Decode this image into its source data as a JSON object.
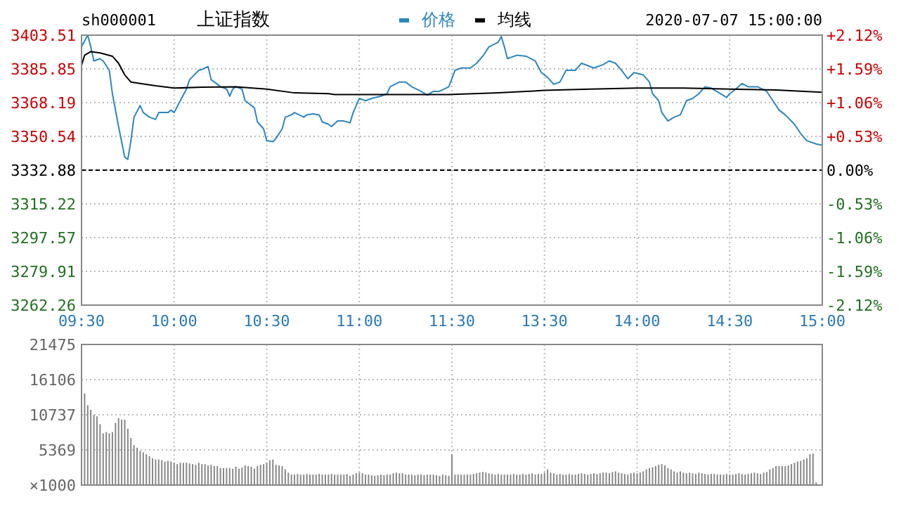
{
  "chart_data": [
    {
      "type": "line",
      "title": "上证指数",
      "subtitle": "sh000001",
      "annotations": [
        "2020-07-07 15:00:00"
      ],
      "categories": [
        "09:30",
        null,
        null,
        null,
        null,
        null,
        null,
        null,
        null,
        null,
        null,
        null,
        null,
        null,
        null,
        null,
        null,
        null,
        null,
        null,
        null,
        null,
        null,
        null,
        null,
        null,
        null,
        null,
        null,
        null,
        "10:00",
        null,
        null,
        null,
        null,
        null,
        null,
        null,
        null,
        null,
        null,
        null,
        null,
        null,
        null,
        null,
        null,
        null,
        null,
        null,
        null,
        null,
        null,
        null,
        null,
        null,
        null,
        null,
        null,
        null,
        "10:30",
        null,
        null,
        null,
        null,
        null,
        null,
        null,
        null,
        null,
        null,
        null,
        null,
        null,
        null,
        null,
        null,
        null,
        null,
        null,
        null,
        null,
        null,
        null,
        null,
        null,
        null,
        null,
        null,
        null,
        "11:00",
        null,
        null,
        null,
        null,
        null,
        null,
        null,
        null,
        null,
        null,
        null,
        null,
        null,
        null,
        null,
        null,
        null,
        null,
        null,
        null,
        null,
        null,
        null,
        null,
        null,
        null,
        null,
        null,
        null,
        "11:30",
        null,
        null,
        null,
        null,
        null,
        null,
        null,
        null,
        null,
        null,
        null,
        null,
        null,
        null,
        null,
        null,
        null,
        null,
        null,
        null,
        null,
        null,
        null,
        null,
        null,
        null,
        null,
        null,
        null,
        "13:30",
        null,
        null,
        null,
        null,
        null,
        null,
        null,
        null,
        null,
        null,
        null,
        null,
        null,
        null,
        null,
        null,
        null,
        null,
        null,
        null,
        null,
        null,
        null,
        null,
        null,
        null,
        null,
        null,
        null,
        "14:00",
        null,
        null,
        null,
        null,
        null,
        null,
        null,
        null,
        null,
        null,
        null,
        null,
        null,
        null,
        null,
        null,
        null,
        null,
        null,
        null,
        null,
        null,
        null,
        null,
        null,
        null,
        null,
        null,
        null,
        "14:30",
        null,
        null,
        null,
        null,
        null,
        null,
        null,
        null,
        null,
        null,
        null,
        null,
        null,
        null,
        null,
        null,
        null,
        null,
        null,
        null,
        null,
        null,
        null,
        null,
        null,
        null,
        null,
        null,
        null,
        "15:00"
      ],
      "ylim": [
        3262.26,
        3403.51
      ],
      "yticks": [
        3262.26,
        3279.91,
        3297.57,
        3315.22,
        3332.88,
        3350.54,
        3368.19,
        3385.85,
        3403.51
      ],
      "y2lim": [
        -2.12,
        2.12
      ],
      "y2ticks": [
        {
          "value": -2.12,
          "label": "-2.12%"
        },
        {
          "value": -1.59,
          "label": "-1.59%"
        },
        {
          "value": -1.06,
          "label": "-1.06%"
        },
        {
          "value": -0.53,
          "label": "-0.53%"
        },
        {
          "value": 0,
          "label": "0.00%"
        },
        {
          "value": 0.53,
          "label": "+0.53%"
        },
        {
          "value": 1.06,
          "label": "+1.06%"
        },
        {
          "value": 1.59,
          "label": "+1.59%"
        },
        {
          "value": 2.12,
          "label": "+2.12%"
        }
      ],
      "ref_lines": [
        {
          "axis": "y",
          "value": 3332.88,
          "color": "#000000",
          "line_style": "dashed"
        }
      ],
      "grid": true,
      "legend": "top",
      "marker": "none",
      "line_style": "solid",
      "series": [
        {
          "name": "价格",
          "color": "#2e86c1",
          "values": [
            3397.4,
            null,
            3403.5,
            3397.4,
            3390.0,
            null,
            3391.2,
            3390.0,
            null,
            3385.1,
            3372.9,
            null,
            3355.7,
            null,
            3339.7,
            3338.5,
            3348.3,
            3360.6,
            null,
            3366.7,
            3363.0,
            null,
            3360.6,
            null,
            3359.4,
            3363.0,
            null,
            null,
            3363.0,
            3364.3,
            3363.0,
            null,
            3369.2,
            null,
            3375.3,
            3380.2,
            null,
            null,
            3385.1,
            3385.6,
            null,
            3387.1,
            3380.2,
            null,
            3377.8,
            3376.5,
            null,
            3375.3,
            3371.6,
            3375.3,
            3376.5,
            null,
            3375.3,
            3369.2,
            null,
            null,
            3365.5,
            3358.1,
            null,
            3354.5,
            3348.3,
            null,
            3347.8,
            3349.5,
            null,
            3354.5,
            3360.6,
            null,
            3361.8,
            3363.0,
            null,
            null,
            3360.6,
            3361.8,
            null,
            3362.3,
            null,
            3361.8,
            3358.1,
            null,
            3356.9,
            3355.7,
            null,
            3358.6,
            null,
            3358.6,
            null,
            3357.6,
            3363.0,
            null,
            3370.4,
            null,
            3369.2,
            null,
            3370.4,
            null,
            null,
            3371.6,
            null,
            3372.9,
            3376.5,
            null,
            null,
            3379.0,
            null,
            3379.0,
            null,
            3376.5,
            null,
            null,
            3374.1,
            null,
            3372.1,
            null,
            3374.1,
            null,
            3374.1,
            null,
            null,
            3376.5,
            null,
            3385.1,
            null,
            3386.3,
            null,
            null,
            3386.3,
            null,
            3388.8,
            null,
            3392.5,
            null,
            3397.4,
            null,
            null,
            3399.8,
            3402.8,
            3397.4,
            3391.2,
            null,
            null,
            3393.0,
            null,
            null,
            3392.5,
            null,
            null,
            3390.0,
            null,
            3383.9,
            null,
            3381.4,
            null,
            3377.8,
            null,
            3379.0,
            null,
            3385.1,
            null,
            null,
            3385.1,
            null,
            3388.8,
            null,
            3387.6,
            null,
            3386.3,
            null,
            null,
            3388.1,
            null,
            3390.0,
            null,
            3388.8,
            null,
            3385.1,
            null,
            3380.7,
            null,
            3383.9,
            null,
            null,
            3382.7,
            null,
            3379.0,
            3372.9,
            null,
            3369.2,
            3363.0,
            null,
            3358.6,
            null,
            3360.6,
            null,
            3361.8,
            null,
            3369.2,
            null,
            3370.4,
            null,
            3372.9,
            null,
            3376.5,
            null,
            3375.8,
            null,
            null,
            3372.9,
            null,
            3370.9,
            3372.9,
            null,
            3375.3,
            null,
            3378.2,
            null,
            3376.5,
            null,
            null,
            3376.5,
            null,
            null,
            3374.1,
            null,
            3369.2,
            null,
            3364.3,
            null,
            3361.8,
            null,
            null,
            3356.9,
            null,
            3352.0,
            null,
            3348.3,
            null,
            null,
            3346.6,
            null,
            3345.9
          ]
        },
        {
          "name": "均线",
          "color": "#000000",
          "values": [
            3387.6,
            3393.0,
            null,
            3394.9,
            null,
            null,
            3394.2,
            null,
            null,
            null,
            3392.5,
            null,
            3388.8,
            null,
            3382.7,
            null,
            3379.0,
            null,
            null,
            3378.2,
            null,
            null,
            null,
            null,
            3377.0,
            null,
            null,
            null,
            null,
            null,
            3375.8,
            null,
            null,
            null,
            null,
            null,
            null,
            null,
            null,
            3376.3,
            null,
            null,
            null,
            null,
            null,
            null,
            null,
            null,
            null,
            null,
            3376.5,
            null,
            null,
            null,
            null,
            null,
            null,
            null,
            null,
            null,
            3375.3,
            null,
            null,
            null,
            null,
            null,
            null,
            null,
            null,
            3373.3,
            null,
            null,
            null,
            null,
            null,
            null,
            null,
            null,
            null,
            null,
            3372.9,
            null,
            3372.4,
            null,
            null,
            null,
            null,
            null,
            null,
            null,
            null,
            null,
            null,
            null,
            null,
            3372.4,
            null,
            null,
            null,
            null,
            null,
            null,
            null,
            null,
            null,
            null,
            null,
            null,
            null,
            null,
            null,
            null,
            null,
            null,
            null,
            null,
            null,
            null,
            null,
            3372.4,
            null,
            null,
            null,
            null,
            null,
            null,
            null,
            null,
            null,
            null,
            null,
            null,
            null,
            null,
            null,
            3373.3,
            null,
            null,
            null,
            null,
            null,
            null,
            null,
            null,
            null,
            null,
            null,
            null,
            null,
            null,
            3374.6,
            null,
            null,
            null,
            null,
            null,
            null,
            null,
            null,
            null,
            null,
            null,
            null,
            null,
            null,
            3375.3,
            null,
            null,
            null,
            null,
            null,
            null,
            null,
            null,
            null,
            null,
            null,
            null,
            null,
            null,
            3375.8,
            null,
            null,
            null,
            null,
            null,
            null,
            null,
            null,
            null,
            null,
            null,
            null,
            null,
            null,
            3375.8,
            null,
            null,
            null,
            null,
            null,
            null,
            null,
            null,
            null,
            null,
            null,
            null,
            null,
            null,
            3375.3,
            null,
            null,
            null,
            null,
            null,
            null,
            null,
            null,
            null,
            null,
            null,
            null,
            null,
            null,
            3374.8,
            null,
            null,
            null,
            null,
            null,
            null,
            null,
            null,
            null,
            null,
            null,
            null,
            null,
            null,
            3373.6
          ]
        }
      ]
    },
    {
      "type": "bar",
      "ylabel": "×1000",
      "ylim": [
        0,
        21475
      ],
      "yticks": [
        5369,
        10737,
        16106,
        21475
      ],
      "tick_labels": "y",
      "grid": true,
      "categories": [
        null,
        null,
        null,
        null,
        null,
        null,
        null,
        null,
        null,
        null,
        null,
        null,
        null,
        null,
        null,
        null,
        null,
        null,
        null,
        null,
        null,
        null,
        null,
        null,
        null,
        null,
        null,
        null,
        null,
        null,
        null,
        null,
        null,
        null,
        null,
        null,
        null,
        null,
        null,
        null,
        null,
        null,
        null,
        null,
        null,
        null,
        null,
        null,
        null,
        null,
        null,
        null,
        null,
        null,
        null,
        null,
        null,
        null,
        null,
        null,
        null,
        null,
        null,
        null,
        null,
        null,
        null,
        null,
        null,
        null,
        null,
        null,
        null,
        null,
        null,
        null,
        null,
        null,
        null,
        null,
        null,
        null,
        null,
        null,
        null,
        null,
        null,
        null,
        null,
        null,
        null,
        null,
        null,
        null,
        null,
        null,
        null,
        null,
        null,
        null,
        null,
        null,
        null,
        null,
        null,
        null,
        null,
        null,
        null,
        null,
        null,
        null,
        null,
        null,
        null,
        null,
        null,
        null,
        null,
        null,
        null,
        null,
        null,
        null,
        null,
        null,
        null,
        null,
        null,
        null,
        null,
        null,
        null,
        null,
        null,
        null,
        null,
        null,
        null,
        null,
        null,
        null,
        null,
        null,
        null,
        null,
        null,
        null,
        null,
        null,
        null,
        null,
        null,
        null,
        null,
        null,
        null,
        null,
        null,
        null,
        null,
        null,
        null,
        null,
        null,
        null,
        null,
        null,
        null,
        null,
        null,
        null,
        null,
        null,
        null,
        null,
        null,
        null,
        null,
        null,
        null,
        null,
        null,
        null,
        null,
        null,
        null,
        null,
        null,
        null,
        null,
        null,
        null,
        null,
        null,
        null,
        null,
        null,
        null,
        null,
        null,
        null,
        null,
        null,
        null,
        null,
        null,
        null,
        null,
        null,
        null,
        null,
        null,
        null,
        null,
        null,
        null,
        null,
        null,
        null,
        null,
        null,
        null,
        null,
        null,
        null,
        null,
        null,
        null,
        null,
        null,
        null,
        null,
        null,
        null,
        null,
        null,
        null,
        null,
        null,
        null
      ],
      "series": [
        {
          "color": "#888888",
          "values": [
            21475,
            14000,
            12200,
            11500,
            10700,
            10500,
            9300,
            7900,
            8100,
            7900,
            8100,
            9500,
            10200,
            10000,
            10000,
            8600,
            7200,
            6100,
            5700,
            5200,
            5000,
            4700,
            4400,
            4100,
            3900,
            3900,
            3800,
            3600,
            3700,
            3600,
            3400,
            3200,
            3400,
            3400,
            3400,
            3300,
            3200,
            3100,
            3400,
            3200,
            3200,
            3000,
            3100,
            2900,
            2900,
            2600,
            2600,
            2600,
            2600,
            2500,
            2800,
            2500,
            2700,
            3000,
            2900,
            2800,
            2500,
            2900,
            3100,
            3200,
            3400,
            3800,
            3900,
            3100,
            3000,
            2900,
            2400,
            1900,
            1600,
            1600,
            1700,
            1600,
            1600,
            1700,
            1600,
            1600,
            1600,
            1700,
            1600,
            1600,
            1600,
            1700,
            1600,
            1600,
            1600,
            1600,
            1700,
            1400,
            1600,
            1800,
            1900,
            1800,
            1600,
            1600,
            1500,
            1400,
            1500,
            1600,
            1500,
            1600,
            1600,
            1800,
            1900,
            1800,
            1800,
            1600,
            1600,
            1600,
            1500,
            1600,
            1600,
            1500,
            1600,
            1600,
            1600,
            1500,
            1400,
            1600,
            1500,
            1400,
            4700,
            1600,
            1600,
            1600,
            1600,
            1600,
            1600,
            1700,
            1800,
            1900,
            2000,
            1900,
            1800,
            1700,
            1600,
            1700,
            1600,
            1600,
            1600,
            1600,
            1700,
            1600,
            1600,
            1700,
            1600,
            1700,
            1800,
            1600,
            1700,
            1700,
            1900,
            2400,
            1900,
            1800,
            1600,
            1700,
            1600,
            1600,
            1700,
            1600,
            1600,
            1700,
            1800,
            1700,
            1600,
            1700,
            1800,
            1700,
            1800,
            1900,
            1900,
            1800,
            2000,
            2100,
            1900,
            1800,
            1700,
            1600,
            1800,
            1900,
            1800,
            1900,
            2100,
            2400,
            2600,
            2700,
            2900,
            3100,
            3200,
            3000,
            2600,
            2400,
            2100,
            1900,
            2100,
            1900,
            1800,
            1900,
            1800,
            1700,
            1900,
            1800,
            1700,
            1600,
            1700,
            1700,
            1600,
            1600,
            1600,
            1700,
            1600,
            1600,
            1700,
            1800,
            1700,
            1600,
            1700,
            1800,
            1900,
            1800,
            1700,
            1900,
            2000,
            2400,
            2600,
            2900,
            2900,
            2900,
            2900,
            3000,
            3200,
            3400,
            3600,
            3700,
            3900,
            4100,
            4700,
            4800,
            400,
            null,
            null
          ]
        }
      ]
    }
  ]
}
